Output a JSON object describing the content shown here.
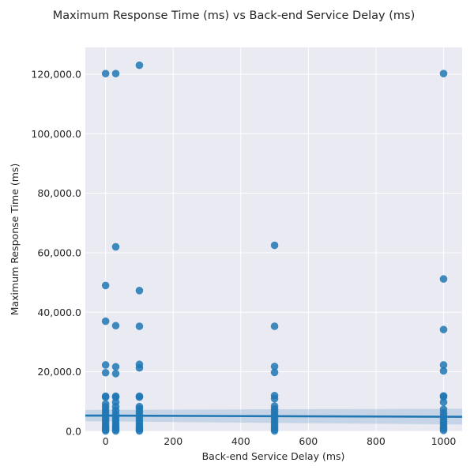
{
  "chart_data": {
    "type": "scatter",
    "title": "Maximum Response Time (ms) vs Back-end Service Delay (ms)",
    "xlabel": "Back-end Service Delay (ms)",
    "ylabel": "Maximum Response Time (ms)",
    "xlim": [
      -60,
      1055
    ],
    "ylim": [
      0,
      129000
    ],
    "xticks": [
      0,
      200,
      400,
      600,
      800,
      1000
    ],
    "xtick_labels": [
      "0",
      "200",
      "400",
      "600",
      "800",
      "1000"
    ],
    "yticks": [
      0,
      20000,
      40000,
      60000,
      80000,
      100000,
      120000
    ],
    "ytick_labels": [
      "0.0",
      "20,000.0",
      "40,000.0",
      "60,000.0",
      "80,000.0",
      "100,000.0",
      "120,000.0"
    ],
    "grid": true,
    "point_color": "#1f77b4",
    "points": [
      {
        "x": 0,
        "y": 120200
      },
      {
        "x": 0,
        "y": 49000
      },
      {
        "x": 0,
        "y": 37000
      },
      {
        "x": 0,
        "y": 22300
      },
      {
        "x": 0,
        "y": 19700
      },
      {
        "x": 0,
        "y": 11800
      },
      {
        "x": 0,
        "y": 11500
      },
      {
        "x": 0,
        "y": 9200
      },
      {
        "x": 0,
        "y": 8200
      },
      {
        "x": 0,
        "y": 7200
      },
      {
        "x": 0,
        "y": 6300
      },
      {
        "x": 0,
        "y": 5400
      },
      {
        "x": 0,
        "y": 4500
      },
      {
        "x": 0,
        "y": 3600
      },
      {
        "x": 0,
        "y": 2800
      },
      {
        "x": 0,
        "y": 2000
      },
      {
        "x": 0,
        "y": 1300
      },
      {
        "x": 0,
        "y": 600
      },
      {
        "x": 0,
        "y": 150
      },
      {
        "x": 30,
        "y": 120200
      },
      {
        "x": 30,
        "y": 62000
      },
      {
        "x": 30,
        "y": 35500
      },
      {
        "x": 30,
        "y": 21700
      },
      {
        "x": 30,
        "y": 19400
      },
      {
        "x": 30,
        "y": 11800
      },
      {
        "x": 30,
        "y": 11500
      },
      {
        "x": 30,
        "y": 9800
      },
      {
        "x": 30,
        "y": 8300
      },
      {
        "x": 30,
        "y": 7000
      },
      {
        "x": 30,
        "y": 5800
      },
      {
        "x": 30,
        "y": 4700
      },
      {
        "x": 30,
        "y": 3700
      },
      {
        "x": 30,
        "y": 2800
      },
      {
        "x": 30,
        "y": 2000
      },
      {
        "x": 30,
        "y": 1300
      },
      {
        "x": 30,
        "y": 600
      },
      {
        "x": 30,
        "y": 150
      },
      {
        "x": 100,
        "y": 123000
      },
      {
        "x": 100,
        "y": 47300
      },
      {
        "x": 100,
        "y": 35300
      },
      {
        "x": 100,
        "y": 22500
      },
      {
        "x": 100,
        "y": 21300
      },
      {
        "x": 100,
        "y": 11800
      },
      {
        "x": 100,
        "y": 11500
      },
      {
        "x": 100,
        "y": 8300
      },
      {
        "x": 100,
        "y": 7600
      },
      {
        "x": 100,
        "y": 6600
      },
      {
        "x": 100,
        "y": 5600
      },
      {
        "x": 100,
        "y": 4600
      },
      {
        "x": 100,
        "y": 3600
      },
      {
        "x": 100,
        "y": 2700
      },
      {
        "x": 100,
        "y": 1900
      },
      {
        "x": 100,
        "y": 1200
      },
      {
        "x": 100,
        "y": 600
      },
      {
        "x": 100,
        "y": 150
      },
      {
        "x": 500,
        "y": 62500
      },
      {
        "x": 500,
        "y": 35300
      },
      {
        "x": 500,
        "y": 21800
      },
      {
        "x": 500,
        "y": 19800
      },
      {
        "x": 500,
        "y": 12000
      },
      {
        "x": 500,
        "y": 11000
      },
      {
        "x": 500,
        "y": 8500
      },
      {
        "x": 500,
        "y": 7500
      },
      {
        "x": 500,
        "y": 6600
      },
      {
        "x": 500,
        "y": 5700
      },
      {
        "x": 500,
        "y": 4800
      },
      {
        "x": 500,
        "y": 3900
      },
      {
        "x": 500,
        "y": 3000
      },
      {
        "x": 500,
        "y": 2200
      },
      {
        "x": 500,
        "y": 1400
      },
      {
        "x": 500,
        "y": 700
      },
      {
        "x": 500,
        "y": 150
      },
      {
        "x": 1000,
        "y": 120200
      },
      {
        "x": 1000,
        "y": 51200
      },
      {
        "x": 1000,
        "y": 34200
      },
      {
        "x": 1000,
        "y": 22300
      },
      {
        "x": 1000,
        "y": 20300
      },
      {
        "x": 1000,
        "y": 11900
      },
      {
        "x": 1000,
        "y": 11600
      },
      {
        "x": 1000,
        "y": 9800
      },
      {
        "x": 1000,
        "y": 7400
      },
      {
        "x": 1000,
        "y": 6200
      },
      {
        "x": 1000,
        "y": 5100
      },
      {
        "x": 1000,
        "y": 4100
      },
      {
        "x": 1000,
        "y": 3200
      },
      {
        "x": 1000,
        "y": 2400
      },
      {
        "x": 1000,
        "y": 1600
      },
      {
        "x": 1000,
        "y": 900
      },
      {
        "x": 1000,
        "y": 300
      }
    ],
    "regression": {
      "x": [
        -60,
        1055
      ],
      "y": [
        5300,
        4900
      ],
      "ci_upper": [
        7200,
        7600
      ],
      "ci_lower": [
        3400,
        2300
      ],
      "color": "#1f77b4"
    }
  }
}
